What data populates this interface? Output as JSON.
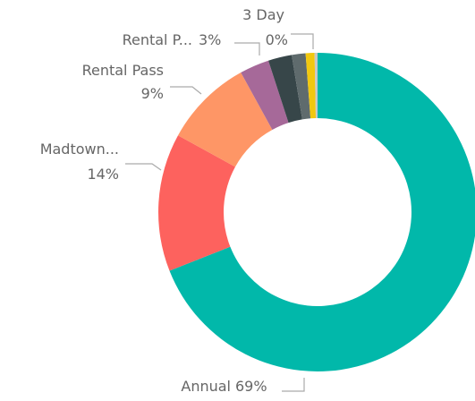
{
  "chart_data": {
    "type": "donut",
    "categories": [
      "Annual",
      "Madtown...",
      "Rental Pass",
      "Rental P...",
      null,
      null,
      null,
      "3 Day"
    ],
    "values": [
      69,
      14,
      9,
      3,
      2.4,
      1.4,
      0.9,
      0.3
    ],
    "value_labels": [
      "69%",
      "14%",
      "9%",
      "3%",
      null,
      null,
      null,
      "0%"
    ],
    "colors": [
      "#01B8AA",
      "#FD625E",
      "#FE9666",
      "#A66999",
      "#374649",
      "#5F6B6D",
      "#F2C80F",
      "#C8C8C8"
    ]
  }
}
